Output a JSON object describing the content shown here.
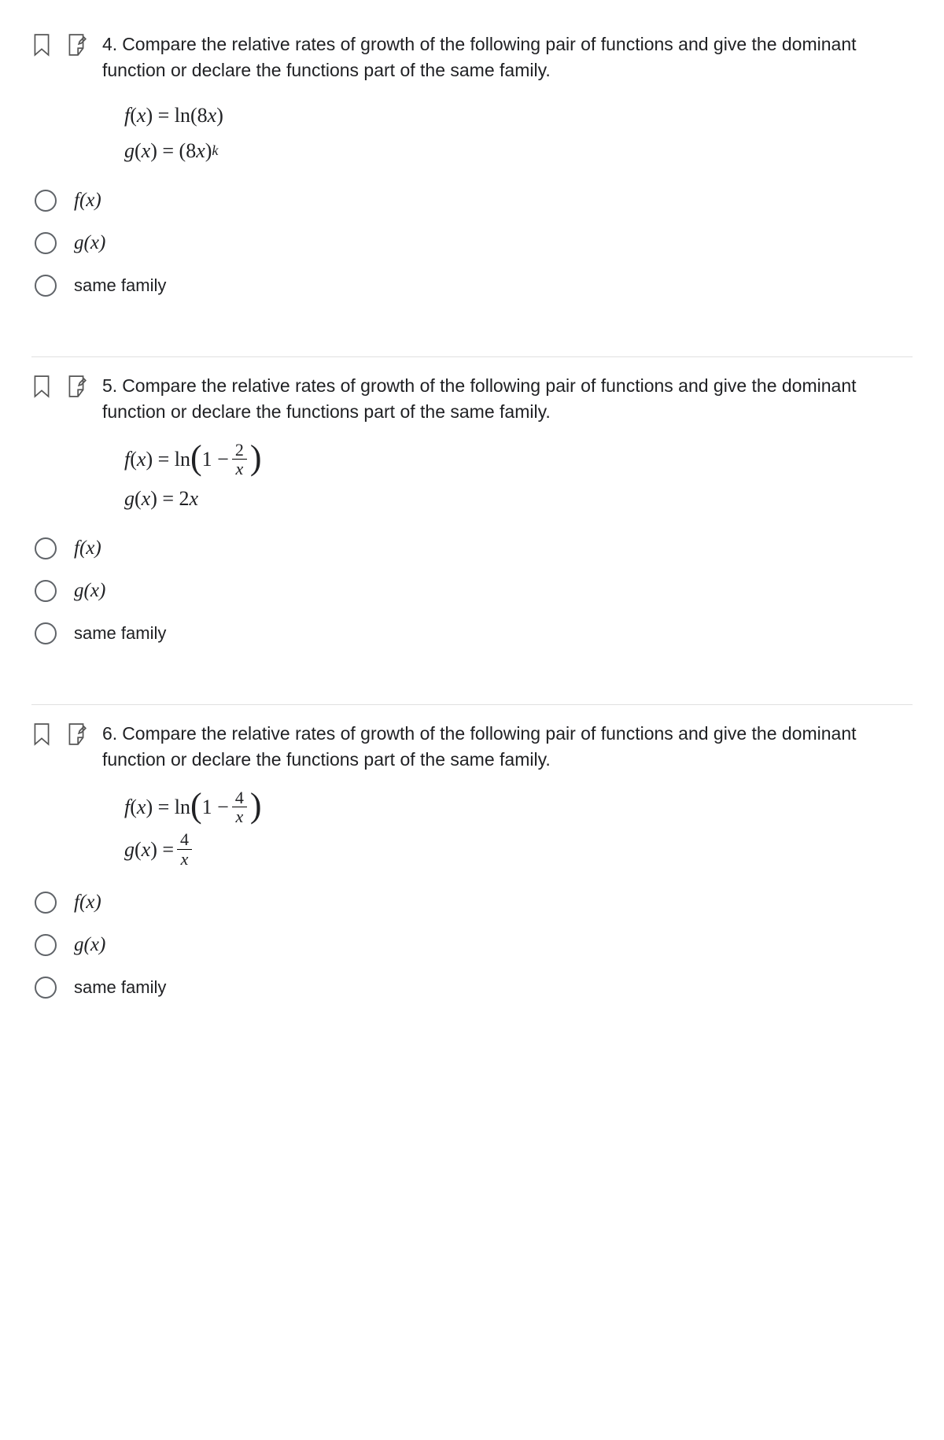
{
  "questions": [
    {
      "number": "4.",
      "prompt": "Compare the relative rates of growth of the following pair of functions and give the dominant function or declare the functions part of the same family.",
      "formula_html": "<div class='eq-row'><span>f</span><span class='rm'>(</span><span>x</span><span class='rm'>) = ln(8</span><span>x</span><span class='rm'>)</span></div><div class='eq-row'><span>g</span><span class='rm'>(</span><span>x</span><span class='rm'>) = (8</span><span>x</span><span class='rm'>)</span><span class='sup'>k</span></div>",
      "options": [
        {
          "type": "math",
          "html": "<span>f</span><span class='rm'>(</span><span>x</span><span class='rm'>)</span>"
        },
        {
          "type": "math",
          "html": "<span>g</span><span class='rm'>(</span><span>x</span><span class='rm'>)</span>"
        },
        {
          "type": "plain",
          "text": "same family"
        }
      ]
    },
    {
      "number": "5.",
      "prompt": "Compare the relative rates of growth of the following pair of functions and give the dominant function or declare the functions part of the same family.",
      "formula_html": "<div class='eq-row'><span>f</span><span class='rm'>(</span><span>x</span><span class='rm'>) = ln</span><span class='paren-expr'><span class='big-paren'>(</span><span class='rm'>1 &minus; </span><span class='frac'><span class='num'>2</span><span class='den'>x</span></span><span class='big-paren'>)</span></span></div><div class='eq-row'><span>g</span><span class='rm'>(</span><span>x</span><span class='rm'>) = 2</span><span>x</span></div>",
      "options": [
        {
          "type": "math",
          "html": "<span>f</span><span class='rm'>(</span><span>x</span><span class='rm'>)</span>"
        },
        {
          "type": "math",
          "html": "<span>g</span><span class='rm'>(</span><span>x</span><span class='rm'>)</span>"
        },
        {
          "type": "plain",
          "text": "same family"
        }
      ]
    },
    {
      "number": "6.",
      "prompt": "Compare the relative rates of growth of the following pair of functions and give the dominant function or declare the functions part of the same family.",
      "formula_html": "<div class='eq-row'><span>f</span><span class='rm'>(</span><span>x</span><span class='rm'>) = ln</span><span class='paren-expr'><span class='big-paren'>(</span><span class='rm'>1 &minus; </span><span class='frac'><span class='num'>4</span><span class='den'>x</span></span><span class='big-paren'>)</span></span></div><div class='eq-row'><span>g</span><span class='rm'>(</span><span>x</span><span class='rm'>) = </span><span class='frac'><span class='num'>4</span><span class='den'>x</span></span></div>",
      "options": [
        {
          "type": "math",
          "html": "<span>f</span><span class='rm'>(</span><span>x</span><span class='rm'>)</span>"
        },
        {
          "type": "math",
          "html": "<span>g</span><span class='rm'>(</span><span>x</span><span class='rm'>)</span>"
        },
        {
          "type": "plain",
          "text": "same family"
        }
      ]
    }
  ],
  "colors": {
    "text": "#202124",
    "divider": "#e0e0e0",
    "radio_border": "#5f6368",
    "icon_stroke": "#555555"
  }
}
